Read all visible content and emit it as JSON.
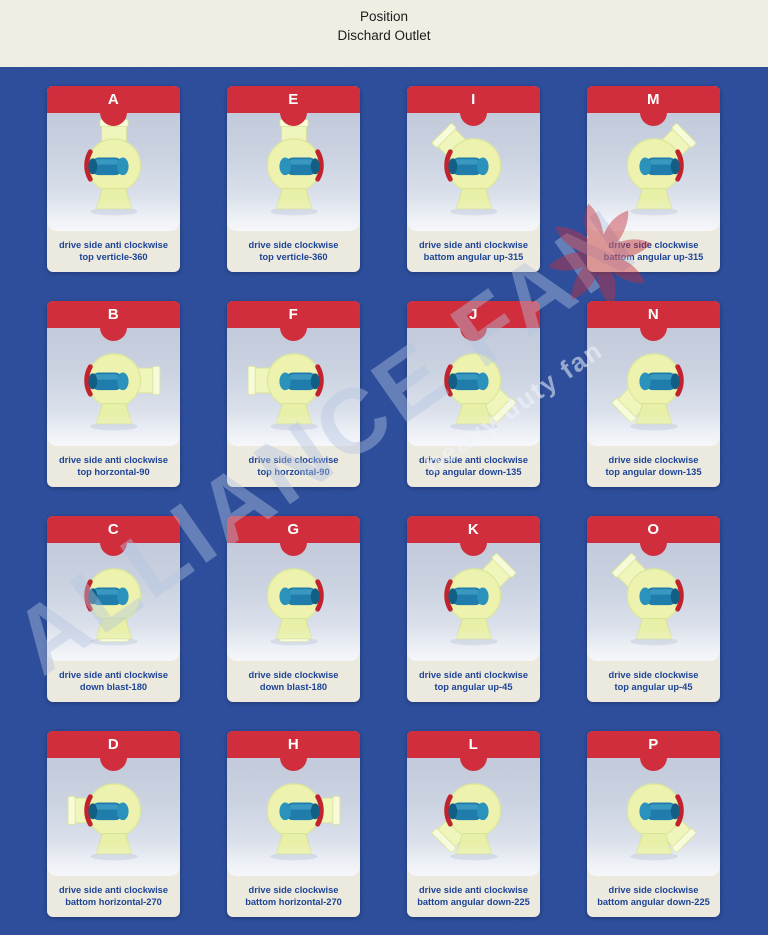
{
  "header": {
    "title_line1": "Position",
    "title_line2": "Dischard Outlet"
  },
  "watermark": {
    "brand": "ALLIANCE FAN",
    "tagline": "heavy duty fan",
    "logo_icon": "fan-pinwheel-icon"
  },
  "colors": {
    "page_background": "#2b4c9d",
    "header_background": "#f0ede2",
    "card_band_red": "#d02e3c",
    "caption_text_blue": "#1d4496",
    "caption_background": "#ece9df",
    "fan_housing_yellow": "#edf3af",
    "motor_teal": "#1f7cab",
    "inlet_red": "#c0232e"
  },
  "cards": [
    {
      "letter": "A",
      "line1": "drive side anti clockwise",
      "line2": "top verticle-360",
      "outlet_angle": 0,
      "mirrored": false
    },
    {
      "letter": "E",
      "line1": "drive side clockwise",
      "line2": "top verticle-360",
      "outlet_angle": 0,
      "mirrored": true
    },
    {
      "letter": "I",
      "line1": "drive side anti clockwise",
      "line2": "battom angular up-315",
      "outlet_angle": 315,
      "mirrored": false
    },
    {
      "letter": "M",
      "line1": "drive side clockwise",
      "line2": "battom angular up-315",
      "outlet_angle": 315,
      "mirrored": true
    },
    {
      "letter": "B",
      "line1": "drive side anti clockwise",
      "line2": "top horzontal-90",
      "outlet_angle": 90,
      "mirrored": false
    },
    {
      "letter": "F",
      "line1": "drive side clockwise",
      "line2": "top horzontal-90",
      "outlet_angle": 90,
      "mirrored": true
    },
    {
      "letter": "J",
      "line1": "drive side anti clockwise",
      "line2": "top angular down-135",
      "outlet_angle": 135,
      "mirrored": false
    },
    {
      "letter": "N",
      "line1": "drive side clockwise",
      "line2": "top angular down-135",
      "outlet_angle": 135,
      "mirrored": true
    },
    {
      "letter": "C",
      "line1": "drive side anti clockwise",
      "line2": "down blast-180",
      "outlet_angle": 180,
      "mirrored": false
    },
    {
      "letter": "G",
      "line1": "drive side clockwise",
      "line2": "down blast-180",
      "outlet_angle": 180,
      "mirrored": true
    },
    {
      "letter": "K",
      "line1": "drive side anti clockwise",
      "line2": "top angular up-45",
      "outlet_angle": 45,
      "mirrored": false
    },
    {
      "letter": "O",
      "line1": "drive side clockwise",
      "line2": "top angular up-45",
      "outlet_angle": 45,
      "mirrored": true
    },
    {
      "letter": "D",
      "line1": "drive side anti clockwise",
      "line2": "battom horizontal-270",
      "outlet_angle": 270,
      "mirrored": false
    },
    {
      "letter": "H",
      "line1": "drive side clockwise",
      "line2": "battom horizontal-270",
      "outlet_angle": 270,
      "mirrored": true
    },
    {
      "letter": "L",
      "line1": "drive side anti clockwise",
      "line2": "battom angular down-225",
      "outlet_angle": 225,
      "mirrored": false
    },
    {
      "letter": "P",
      "line1": "drive side clockwise",
      "line2": "battom angular down-225",
      "outlet_angle": 225,
      "mirrored": true
    }
  ]
}
